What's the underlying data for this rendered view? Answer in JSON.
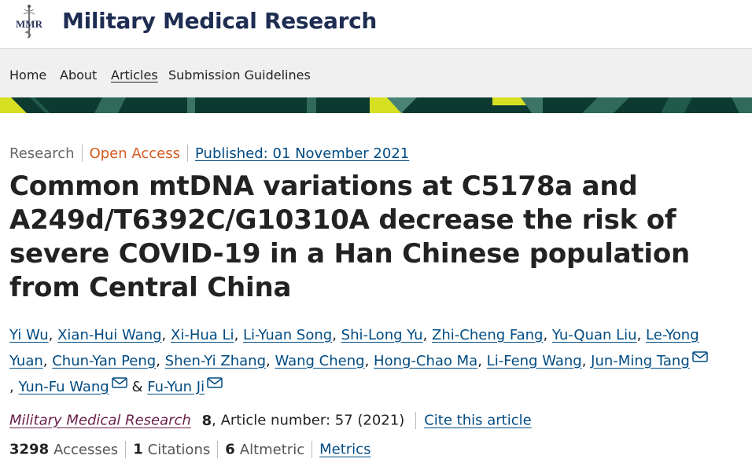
{
  "header": {
    "logo_text": "MMR",
    "site_title": "Military Medical Research"
  },
  "nav": {
    "items": [
      {
        "label": "Home",
        "active": false
      },
      {
        "label": "About",
        "active": false
      },
      {
        "label": "Articles",
        "active": true
      },
      {
        "label": "Submission Guidelines",
        "active": false
      }
    ]
  },
  "colors": {
    "band_dark": "#0d3a30",
    "band_accent": "#d7df23",
    "link": "#004b83",
    "title_navy": "#1e2d52",
    "open_access": "#d45a20"
  },
  "article": {
    "type": "Research",
    "access": "Open Access",
    "published": "Published: 01 November 2021",
    "title": "Common mtDNA variations at C5178a and A249d/T6392C/G10310A decrease the risk of severe COVID-19 in a Han Chinese population from Central China",
    "authors": [
      {
        "name": "Yi Wu",
        "email": false
      },
      {
        "name": "Xian-Hui Wang",
        "email": false
      },
      {
        "name": "Xi-Hua Li",
        "email": false
      },
      {
        "name": "Li-Yuan Song",
        "email": false
      },
      {
        "name": "Shi-Long Yu",
        "email": false
      },
      {
        "name": "Zhi-Cheng Fang",
        "email": false
      },
      {
        "name": "Yu-Quan Liu",
        "email": false
      },
      {
        "name": "Le-Yong Yuan",
        "email": false
      },
      {
        "name": "Chun-Yan Peng",
        "email": false
      },
      {
        "name": "Shen-Yi Zhang",
        "email": false
      },
      {
        "name": "Wang Cheng",
        "email": false
      },
      {
        "name": "Hong-Chao Ma",
        "email": false
      },
      {
        "name": "Li-Feng Wang",
        "email": false
      },
      {
        "name": "Jun-Ming Tang",
        "email": true
      },
      {
        "name": "Yun-Fu Wang",
        "email": true
      },
      {
        "name": "Fu-Yun Ji",
        "email": true
      }
    ],
    "author_separator": ", ",
    "author_last_separator": " & ",
    "mail_icon": "envelope-icon"
  },
  "citation": {
    "journal": "Military Medical Research",
    "volume": "8",
    "article_number_text": ", Article number: 57 (2021)",
    "cite_label": "Cite this article"
  },
  "metrics": {
    "accesses_count": "3298",
    "accesses_label": "Accesses",
    "citations_count": "1",
    "citations_label": "Citations",
    "altmetric_count": "6",
    "altmetric_label": "Altmetric",
    "metrics_label": "Metrics"
  }
}
